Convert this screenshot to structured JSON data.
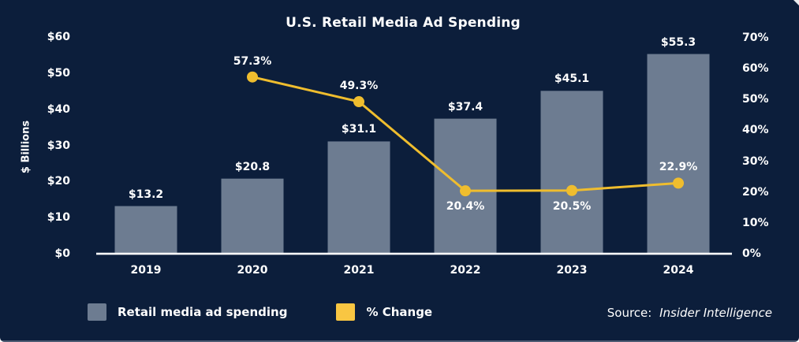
{
  "colors": {
    "background": "#0C1E3B",
    "bar": "#6D7C91",
    "line": "#EFBD2E",
    "legend_yellow": "#F9C642",
    "axis_line": "#FFFFFF",
    "text": "#FFFFFF"
  },
  "chart_data": {
    "type": "bar+line combo",
    "title": "U.S. Retail Media Ad Spending",
    "categories": [
      "2019",
      "2020",
      "2021",
      "2022",
      "2023",
      "2024"
    ],
    "series": [
      {
        "name": "Retail media ad spending",
        "type": "bar",
        "axis": "left",
        "values": [
          13.2,
          20.8,
          31.1,
          37.4,
          45.1,
          55.3
        ],
        "labels": [
          "$13.2",
          "$20.8",
          "$31.1",
          "$37.4",
          "$45.1",
          "$55.3"
        ]
      },
      {
        "name": "% Change",
        "type": "line",
        "axis": "right",
        "values": [
          null,
          57.3,
          49.3,
          20.4,
          20.5,
          22.9
        ],
        "labels": [
          null,
          "57.3%",
          "49.3%",
          "20.4%",
          "20.5%",
          "22.9%"
        ],
        "label_positions": [
          null,
          "above",
          "above",
          "below",
          "below",
          "above"
        ]
      }
    ],
    "left_axis": {
      "label": "$ Billions",
      "min": 0,
      "max": 60,
      "ticks": [
        "$0",
        "$10",
        "$20",
        "$30",
        "$40",
        "$50",
        "$60"
      ]
    },
    "right_axis": {
      "min": 0,
      "max": 70,
      "ticks": [
        "0%",
        "10%",
        "20%",
        "30%",
        "40%",
        "50%",
        "60%",
        "70%"
      ]
    },
    "grid": false,
    "legend_position": "bottom",
    "legend": [
      {
        "label": "Retail media ad spending",
        "color_key": "bar"
      },
      {
        "label": "% Change",
        "color_key": "legend_yellow"
      }
    ],
    "source_prefix": "Source:",
    "source_name": "Insider Intelligence"
  }
}
